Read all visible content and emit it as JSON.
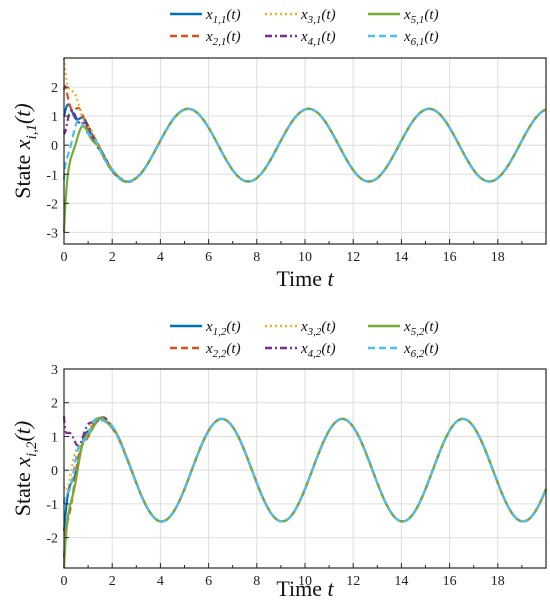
{
  "chart_data": [
    {
      "type": "line",
      "xlabel": "Time t",
      "ylabel": "State x_i,1(t)",
      "xlim": [
        0,
        20
      ],
      "ylim": [
        -3.4,
        3
      ],
      "xticks": [
        "0",
        "2",
        "4",
        "6",
        "8",
        "10",
        "12",
        "14",
        "16",
        "18"
      ],
      "yticks": [
        "-3",
        "-2",
        "-1",
        "0",
        "1",
        "2"
      ],
      "grid": true,
      "legend_position": "top",
      "steady": {
        "amplitude": 1.25,
        "period": 5,
        "peak_at": 5.15
      },
      "series": [
        {
          "name": "x_1,1(t)",
          "color": "#0072BD",
          "dash": "solid",
          "x0": 1.0
        },
        {
          "name": "x_2,1(t)",
          "color": "#D95319",
          "dash": "dashed",
          "x0": 1.9
        },
        {
          "name": "x_3,1(t)",
          "color": "#EDB120",
          "dash": "dotted",
          "x0": 3.0
        },
        {
          "name": "x_4,1(t)",
          "color": "#7E2F8E",
          "dash": "dashdot",
          "x0": 0.5
        },
        {
          "name": "x_5,1(t)",
          "color": "#77AC30",
          "dash": "solid",
          "x0": -3.0
        },
        {
          "name": "x_6,1(t)",
          "color": "#4DBEEE",
          "dash": "dashed",
          "x0": -1.2
        }
      ]
    },
    {
      "type": "line",
      "xlabel": "Time t",
      "ylabel": "State x_i,2(t)",
      "xlim": [
        0,
        20
      ],
      "ylim": [
        -2.9,
        3
      ],
      "xticks": [
        "0",
        "2",
        "4",
        "6",
        "8",
        "10",
        "12",
        "14",
        "16",
        "18"
      ],
      "yticks": [
        "-2",
        "-1",
        "0",
        "1",
        "2",
        "3"
      ],
      "grid": true,
      "legend_position": "top",
      "steady": {
        "amplitude": 1.52,
        "period": 5,
        "peak_at": 6.55
      },
      "series": [
        {
          "name": "x_1,2(t)",
          "color": "#0072BD",
          "dash": "solid",
          "x0": -1.8
        },
        {
          "name": "x_2,2(t)",
          "color": "#D95319",
          "dash": "dashed",
          "x0": -2.6
        },
        {
          "name": "x_3,2(t)",
          "color": "#EDB120",
          "dash": "dotted",
          "x0": -0.5
        },
        {
          "name": "x_4,2(t)",
          "color": "#7E2F8E",
          "dash": "dashdot",
          "x0": 1.6
        },
        {
          "name": "x_5,2(t)",
          "color": "#77AC30",
          "dash": "solid",
          "x0": -2.9
        },
        {
          "name": "x_6,2(t)",
          "color": "#4DBEEE",
          "dash": "dashed",
          "x0": -1.0
        }
      ]
    }
  ]
}
